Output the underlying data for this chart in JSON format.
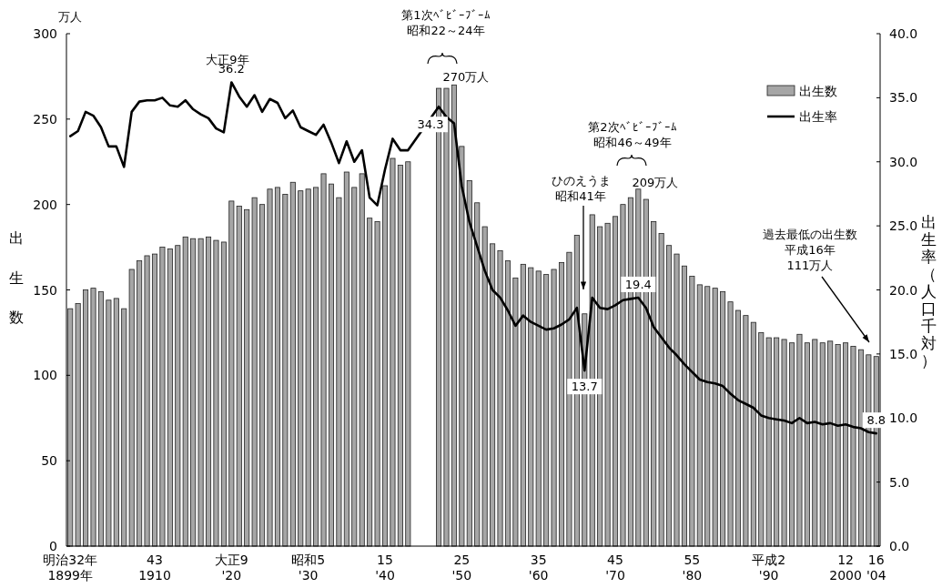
{
  "chart_data": {
    "type": "bar",
    "ylabel": "出生数",
    "y2label": "出生率（人口千対）",
    "categories": [
      "明治32年\n1899年",
      null,
      null,
      null,
      null,
      null,
      null,
      null,
      null,
      null,
      null,
      "43\n1910",
      null,
      null,
      null,
      null,
      null,
      null,
      null,
      null,
      null,
      "大正9\n'20",
      null,
      null,
      null,
      null,
      null,
      null,
      null,
      null,
      null,
      "昭和5\n'30",
      null,
      null,
      null,
      null,
      null,
      null,
      null,
      null,
      null,
      "15\n'40",
      null,
      null,
      null,
      null,
      null,
      null,
      null,
      null,
      null,
      "25\n'50",
      null,
      null,
      null,
      null,
      null,
      null,
      null,
      null,
      null,
      "35\n'60",
      null,
      null,
      null,
      null,
      null,
      null,
      null,
      null,
      null,
      "45\n'70",
      null,
      null,
      null,
      null,
      null,
      null,
      null,
      null,
      null,
      "55\n'80",
      null,
      null,
      null,
      null,
      null,
      null,
      null,
      null,
      null,
      "平成2\n'90",
      null,
      null,
      null,
      null,
      null,
      null,
      null,
      null,
      null,
      "12\n2000",
      null,
      null,
      null,
      "16\n'04"
    ],
    "series": [
      {
        "name": "出生数",
        "color": "#a6a6a6",
        "values": [
          139,
          142,
          150,
          151,
          149,
          144,
          145,
          139,
          162,
          167,
          170,
          171,
          175,
          174,
          176,
          181,
          180,
          180,
          181,
          179,
          178,
          202,
          199,
          197,
          204,
          200,
          209,
          210,
          206,
          213,
          208,
          209,
          210,
          218,
          212,
          204,
          219,
          210,
          218,
          192,
          190,
          211,
          227,
          223,
          225,
          null,
          null,
          null,
          268,
          268,
          270,
          234,
          214,
          201,
          187,
          177,
          173,
          167,
          157,
          165,
          163,
          161,
          159,
          162,
          166,
          172,
          182,
          136,
          194,
          187,
          189,
          193,
          200,
          204,
          209,
          203,
          190,
          183,
          176,
          171,
          164,
          158,
          153,
          152,
          151,
          149,
          143,
          138,
          135,
          131,
          125,
          122,
          122,
          121,
          119,
          124,
          119,
          121,
          119,
          120,
          118,
          119,
          117,
          115,
          112,
          111
        ]
      },
      {
        "name": "出生率",
        "type": "line",
        "axis": "y2",
        "color": "#000000",
        "values": [
          32.0,
          32.4,
          33.9,
          33.6,
          32.7,
          31.2,
          31.2,
          29.6,
          33.9,
          34.7,
          34.8,
          34.8,
          35.0,
          34.4,
          34.3,
          34.8,
          34.1,
          33.7,
          33.4,
          32.6,
          32.3,
          36.2,
          35.1,
          34.3,
          35.2,
          33.9,
          34.9,
          34.6,
          33.4,
          34.0,
          32.7,
          32.4,
          32.1,
          32.9,
          31.5,
          29.9,
          31.6,
          30.0,
          30.9,
          27.2,
          26.6,
          29.4,
          31.8,
          30.9,
          30.9,
          null,
          null,
          null,
          34.3,
          33.5,
          33.0,
          28.1,
          25.3,
          23.4,
          21.5,
          20.0,
          19.4,
          18.4,
          17.2,
          18.0,
          17.5,
          17.2,
          16.9,
          17.0,
          17.3,
          17.7,
          18.6,
          13.7,
          19.4,
          18.6,
          18.5,
          18.8,
          19.2,
          19.3,
          19.4,
          18.6,
          17.1,
          16.3,
          15.5,
          14.9,
          14.2,
          13.6,
          13.0,
          12.8,
          12.7,
          12.5,
          11.9,
          11.4,
          11.1,
          10.8,
          10.2,
          10.0,
          9.9,
          9.8,
          9.6,
          10.0,
          9.6,
          9.7,
          9.5,
          9.6,
          9.4,
          9.5,
          9.3,
          9.2,
          8.9,
          8.8
        ],
        "value_labels": [
          null,
          null,
          null,
          null,
          null,
          null,
          null,
          null,
          null,
          null,
          null,
          null,
          null,
          null,
          null,
          null,
          null,
          null,
          null,
          null,
          null,
          "36.2",
          null,
          null,
          null,
          null,
          null,
          null,
          null,
          null,
          null,
          null,
          null,
          null,
          null,
          null,
          null,
          null,
          null,
          null,
          null,
          null,
          null,
          null,
          null,
          null,
          null,
          null,
          "34.3",
          null,
          null,
          null,
          null,
          null,
          null,
          null,
          null,
          null,
          null,
          null,
          null,
          null,
          null,
          null,
          null,
          null,
          null,
          "13.7",
          null,
          null,
          null,
          null,
          null,
          null,
          "19.4",
          null,
          null,
          null,
          null,
          null,
          null,
          null,
          null,
          null,
          null,
          null,
          null,
          null,
          null,
          null,
          null,
          null,
          null,
          null,
          null,
          null,
          null,
          null,
          null,
          null,
          null,
          null,
          null,
          null,
          null,
          "8.8"
        ]
      }
    ],
    "ylim": [
      0,
      300
    ],
    "yticks": [
      0,
      50,
      100,
      150,
      200,
      250,
      300
    ],
    "y2lim": [
      0,
      40
    ],
    "y2ticks": [
      {
        "value": 0,
        "label": "0.0"
      },
      {
        "value": 5,
        "label": "5.0"
      },
      {
        "value": 10,
        "label": "10.0"
      },
      {
        "value": 15,
        "label": "15.0"
      },
      {
        "value": 20,
        "label": "20.0"
      },
      {
        "value": 25,
        "label": "25.0"
      },
      {
        "value": 30,
        "label": "30.0"
      },
      {
        "value": 35,
        "label": "35.0"
      },
      {
        "value": 40,
        "label": "40.0"
      }
    ],
    "legend": "top right",
    "annotations": [
      "万人",
      "大正9年",
      "第1次ﾍﾞﾋﾞｰﾌﾞｰﾑ",
      "昭和22～24年",
      "270万人",
      "第2次ﾍﾞﾋﾞｰﾌﾞｰﾑ",
      "昭和46～49年",
      "209万人",
      "ひのえうま",
      "昭和41年",
      "過去最低の出生数",
      "平成16年",
      "111万人"
    ]
  }
}
